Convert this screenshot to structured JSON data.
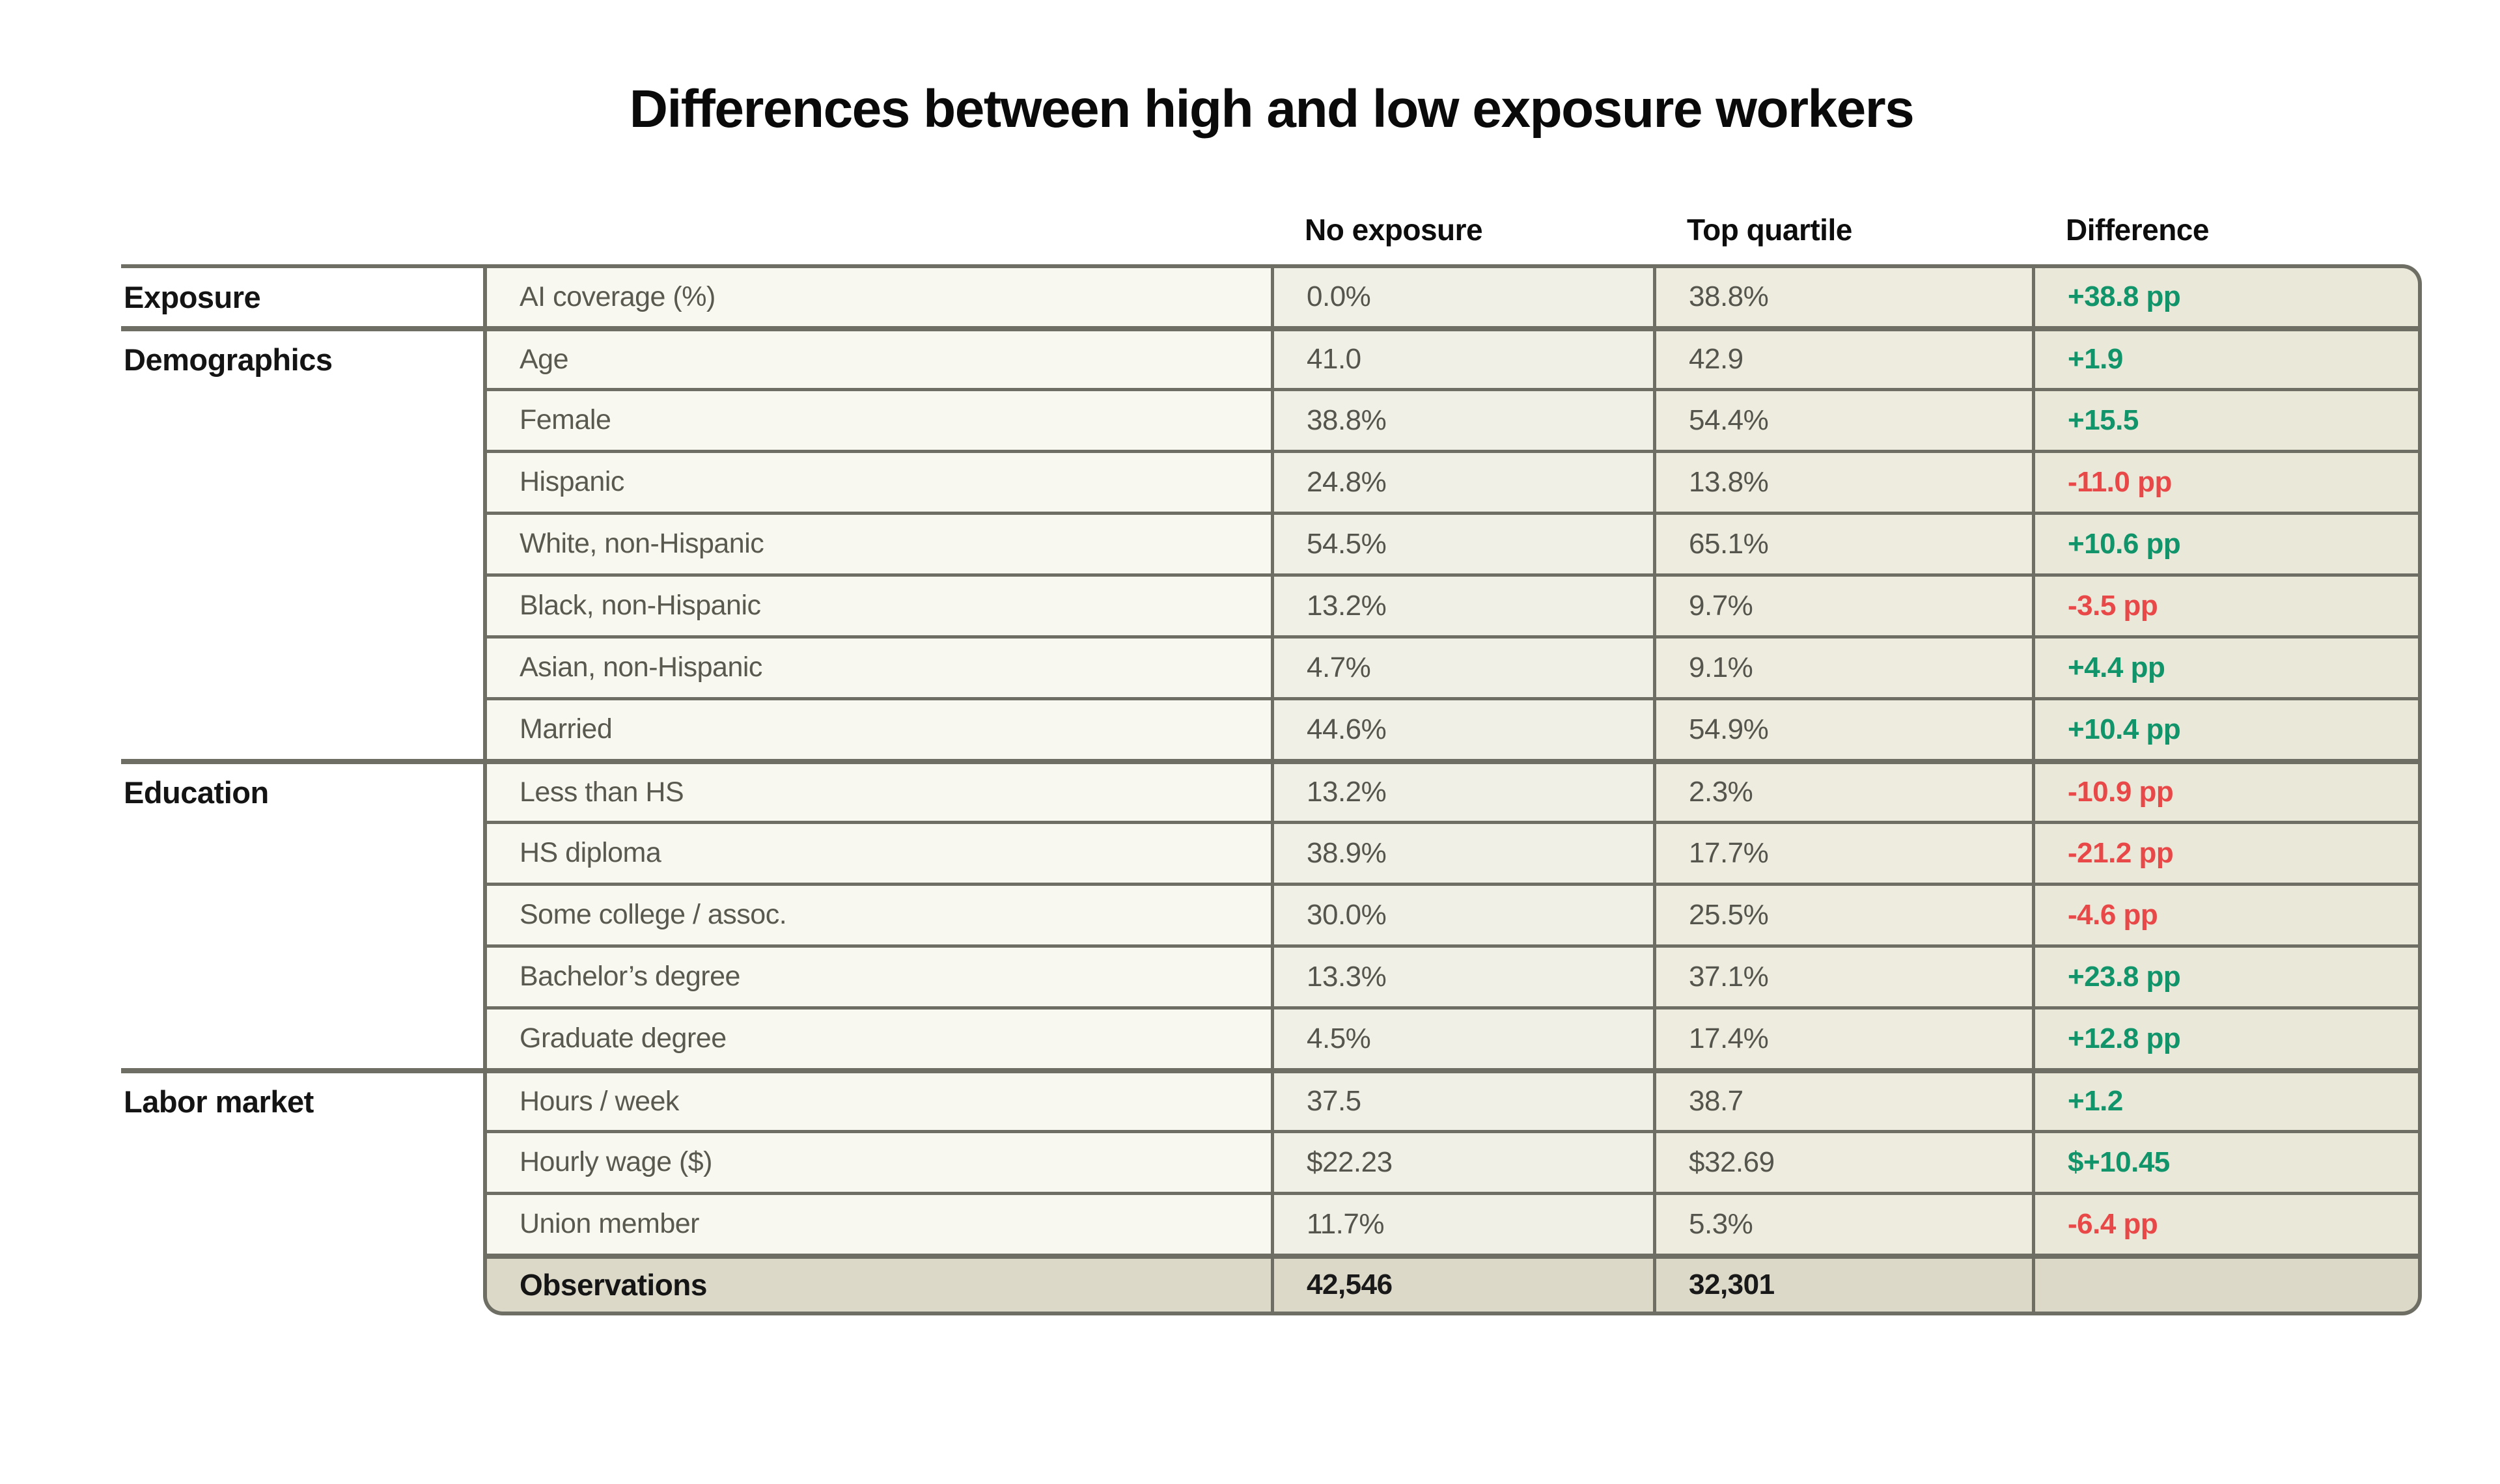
{
  "chart_data": {
    "type": "table",
    "title": "Differences between high and low exposure workers",
    "column_headers": [
      "No exposure",
      "Top quartile",
      "Difference"
    ],
    "groups": [
      {
        "label": "Exposure",
        "rows": [
          {
            "attribute": "AI coverage (%)",
            "values": [
              "0.0%",
              "38.8%",
              "+38.8 pp"
            ]
          }
        ]
      },
      {
        "label": "Demographics",
        "rows": [
          {
            "attribute": "Age",
            "values": [
              "41.0",
              "42.9",
              "+1.9"
            ]
          },
          {
            "attribute": "Female",
            "values": [
              "38.8%",
              "54.4%",
              "+15.5"
            ]
          },
          {
            "attribute": "Hispanic",
            "values": [
              "24.8%",
              "13.8%",
              "-11.0 pp"
            ]
          },
          {
            "attribute": "White, non-Hispanic",
            "values": [
              "54.5%",
              "65.1%",
              "+10.6 pp"
            ]
          },
          {
            "attribute": "Black, non-Hispanic",
            "values": [
              "13.2%",
              "9.7%",
              "-3.5 pp"
            ]
          },
          {
            "attribute": "Asian, non-Hispanic",
            "values": [
              "4.7%",
              "9.1%",
              "+4.4 pp"
            ]
          },
          {
            "attribute": "Married",
            "values": [
              "44.6%",
              "54.9%",
              "+10.4 pp"
            ]
          }
        ]
      },
      {
        "label": "Education",
        "rows": [
          {
            "attribute": "Less than HS",
            "values": [
              "13.2%",
              "2.3%",
              "-10.9 pp"
            ]
          },
          {
            "attribute": "HS diploma",
            "values": [
              "38.9%",
              "17.7%",
              "-21.2 pp"
            ]
          },
          {
            "attribute": "Some college / assoc.",
            "values": [
              "30.0%",
              "25.5%",
              "-4.6 pp"
            ]
          },
          {
            "attribute": "Bachelor’s degree",
            "values": [
              "13.3%",
              "37.1%",
              "+23.8 pp"
            ]
          },
          {
            "attribute": "Graduate degree",
            "values": [
              "4.5%",
              "17.4%",
              "+12.8 pp"
            ]
          }
        ]
      },
      {
        "label": "Labor market",
        "rows": [
          {
            "attribute": "Hours / week",
            "values": [
              "37.5",
              "38.7",
              "+1.2"
            ]
          },
          {
            "attribute": "Hourly wage ($)",
            "values": [
              "$22.23",
              "$32.69",
              "$+10.45"
            ]
          },
          {
            "attribute": "Union member",
            "values": [
              "11.7%",
              "5.3%",
              "-6.4 pp"
            ]
          }
        ]
      }
    ],
    "footer": {
      "label": "Observations",
      "no_exposure": "42,546",
      "top_quartile": "32,301",
      "difference": ""
    }
  },
  "colors": {
    "positive": "#12946b",
    "negative": "#e94848",
    "border": "#6e6e64",
    "col_attribute_bg": "#f8f7f0",
    "col_no_exposure_bg": "#f1f0e7",
    "col_top_quartile_bg": "#edecdf",
    "col_difference_bg": "#e9e8d9",
    "footer_row_bg": "#dcd9c9"
  }
}
